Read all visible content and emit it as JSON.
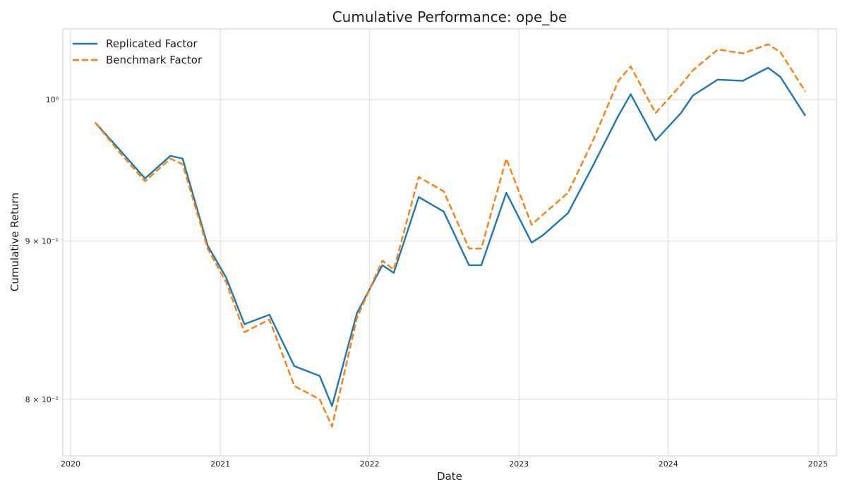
{
  "chart_data": {
    "type": "line",
    "title": "Cumulative Performance: ope_be",
    "xlabel": "Date",
    "ylabel": "Cumulative Return",
    "y_scale": "log",
    "ylim": [
      0.767,
      1.054
    ],
    "xlim": [
      "2019-12-13",
      "2025-02-15"
    ],
    "grid": true,
    "legend_position": "top-left",
    "x_ticks": [
      {
        "label": "2020",
        "date": "2020-01-01"
      },
      {
        "label": "2021",
        "date": "2021-01-01"
      },
      {
        "label": "2022",
        "date": "2022-01-01"
      },
      {
        "label": "2023",
        "date": "2023-01-01"
      },
      {
        "label": "2024",
        "date": "2024-01-01"
      },
      {
        "label": "2025",
        "date": "2025-01-01"
      }
    ],
    "y_ticks": [
      {
        "label": "8 × 10⁻¹",
        "value": 0.8
      },
      {
        "label": "9 × 10⁻¹",
        "value": 0.9
      },
      {
        "label": "10⁰",
        "value": 1.0
      }
    ],
    "x": [
      "2020-03-01",
      "2020-05-01",
      "2020-07-01",
      "2020-09-01",
      "2020-10-01",
      "2020-12-01",
      "2021-01-15",
      "2021-03-01",
      "2021-05-01",
      "2021-07-01",
      "2021-09-01",
      "2021-10-01",
      "2021-12-01",
      "2022-02-01",
      "2022-03-01",
      "2022-05-01",
      "2022-07-01",
      "2022-09-01",
      "2022-10-01",
      "2022-12-01",
      "2023-02-01",
      "2023-03-01",
      "2023-05-01",
      "2023-07-01",
      "2023-09-01",
      "2023-10-01",
      "2023-12-01",
      "2024-02-01",
      "2024-03-01",
      "2024-05-01",
      "2024-07-01",
      "2024-09-01",
      "2024-10-01",
      "2024-12-01"
    ],
    "series": [
      {
        "name": "Replicated Factor",
        "color": "#1f77b4",
        "style": "solid",
        "values": [
          0.983,
          0.963,
          0.943,
          0.959,
          0.957,
          0.897,
          0.876,
          0.846,
          0.852,
          0.82,
          0.814,
          0.796,
          0.853,
          0.884,
          0.879,
          0.93,
          0.92,
          0.884,
          0.884,
          0.933,
          0.899,
          0.904,
          0.919,
          0.952,
          0.988,
          1.004,
          0.97,
          0.99,
          1.003,
          1.015,
          1.014,
          1.024,
          1.017,
          0.988
        ]
      },
      {
        "name": "Benchmark Factor",
        "color": "#ff7f0e",
        "style": "dashed",
        "values": [
          0.983,
          0.961,
          0.941,
          0.957,
          0.953,
          0.895,
          0.873,
          0.841,
          0.849,
          0.808,
          0.8,
          0.784,
          0.85,
          0.887,
          0.881,
          0.944,
          0.934,
          0.895,
          0.895,
          0.957,
          0.911,
          0.918,
          0.933,
          0.97,
          1.014,
          1.025,
          0.99,
          1.011,
          1.022,
          1.038,
          1.035,
          1.042,
          1.036,
          1.006
        ]
      }
    ]
  }
}
